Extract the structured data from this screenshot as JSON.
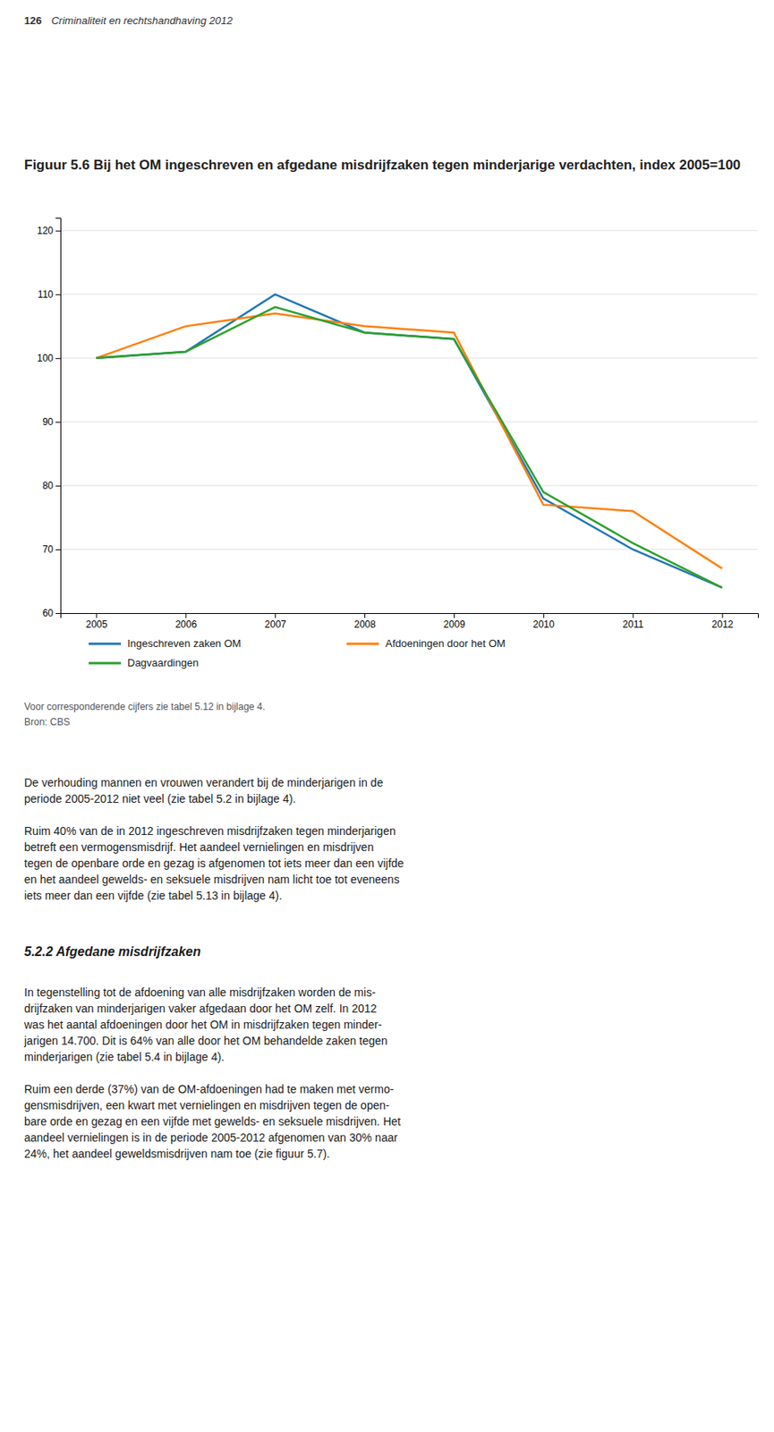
{
  "page_header": [
    "126",
    "Criminaliteit en rechtshandhaving 2012"
  ],
  "chart_data": {
    "type": "line",
    "title": "Figuur 5.6 Bij het OM ingeschreven en afgedane misdrijfzaken tegen minderjarige verdachten, index 2005=100",
    "x": [
      2005,
      2006,
      2007,
      2008,
      2009,
      2010,
      2011,
      2012
    ],
    "series": [
      {
        "name": "Ingeschreven zaken OM",
        "values": [
          100,
          101,
          110,
          104,
          103,
          78,
          70,
          64
        ]
      },
      {
        "name": "Afdoeningen door het OM",
        "values": [
          100,
          105,
          107,
          105,
          104,
          77,
          76,
          67
        ]
      },
      {
        "name": "Dagvaardingen",
        "values": [
          100,
          101,
          108,
          104,
          103,
          79,
          71,
          64
        ]
      }
    ],
    "xlim": [
      2004.6,
      2012.4
    ],
    "xticks": [
      2005,
      2006,
      2007,
      2008,
      2009,
      2010,
      2011,
      2012
    ],
    "ylim": [
      60,
      122
    ],
    "yticks": [
      60,
      70,
      80,
      90,
      100,
      110,
      120
    ],
    "grid": true,
    "legend": "bottom",
    "annotations": [
      "Voor corresponderende cijfers zie tabel 5.12 in bijlage 4.",
      "Bron: CBS"
    ]
  },
  "body": [
    [
      "De verhouding mannen en vrouwen verandert bij de minderjarigen in de",
      "periode 2005-2012 niet veel (zie tabel 5.2 in bijlage 4)."
    ],
    [
      "Ruim 40% van de in 2012 ingeschreven misdrijfzaken tegen minderjarigen",
      "betreft een vermogensmisdrijf. Het aandeel vernielingen en misdrijven",
      "tegen de openbare orde en gezag is afgenomen tot iets meer dan een vijfde",
      "en het aandeel gewelds- en seksuele misdrijven nam licht toe tot eveneens",
      "iets meer dan een vijfde (zie tabel 5.13 in bijlage 4)."
    ]
  ],
  "section_header": "5.2.2  Afgedane misdrijfzaken",
  "section_body": [
    [
      "In tegenstelling tot de afdoening van alle misdrijfzaken worden de mis-",
      "drijfzaken van minderjarigen vaker afgedaan door het OM zelf. In 2012",
      "was het aantal afdoeningen door het OM in misdrijfzaken tegen minder-",
      "jarigen 14.700. Dit is 64% van alle door het OM behandelde zaken tegen",
      "minderjarigen (zie tabel 5.4 in bijlage 4)."
    ],
    [
      "Ruim een derde (37%) van de OM-afdoeningen had te maken met vermo-",
      "gensmisdrijven, een kwart met vernielingen en misdrijven tegen de open-",
      "bare orde en gezag en een vijfde met gewelds- en seksuele misdrijven. Het",
      "aandeel vernielingen is in de periode 2005-2012 afgenomen van 30% naar",
      "24%, het aandeel geweldsmisdrijven nam toe (zie figuur 5.7)."
    ]
  ]
}
